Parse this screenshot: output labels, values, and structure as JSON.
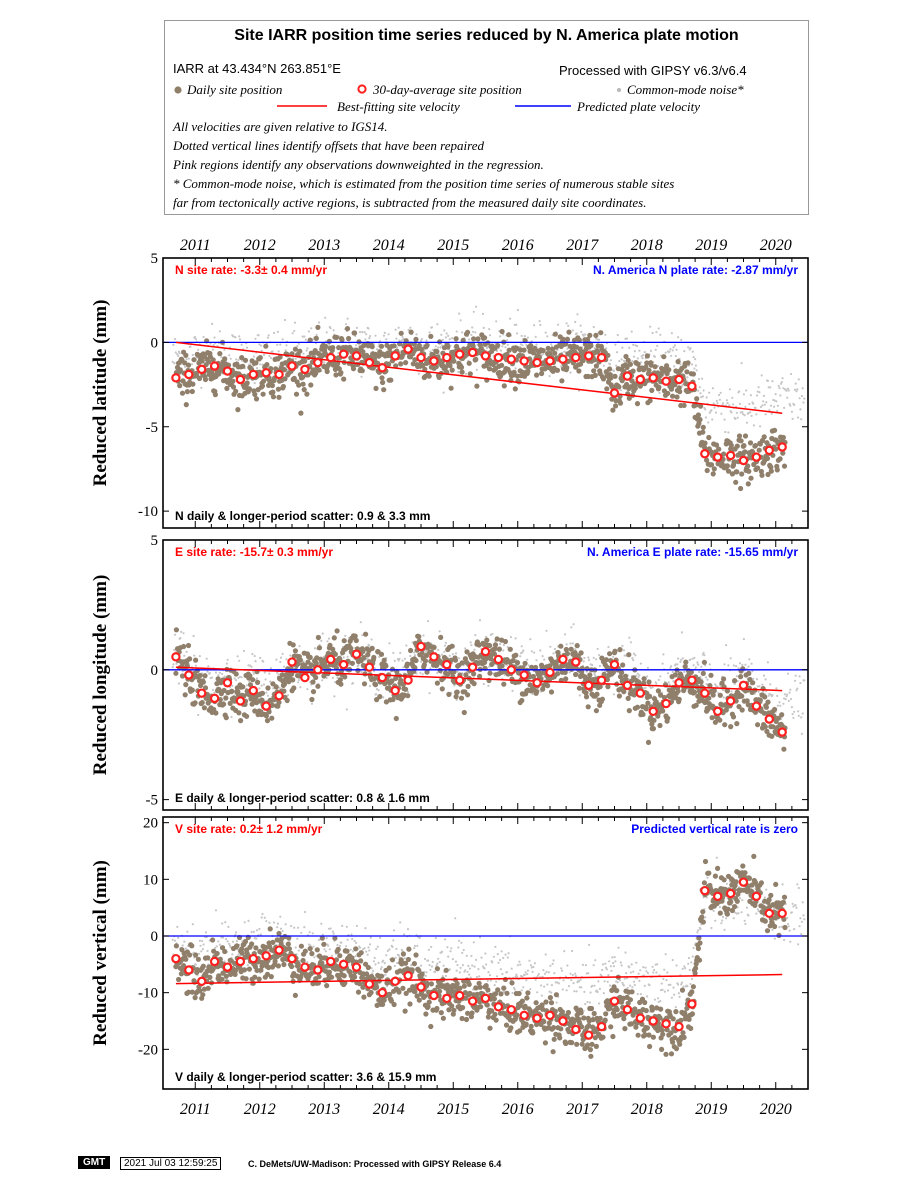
{
  "legend": {
    "title": "Site IARR position time series reduced by N. America plate motion",
    "site_line": "IARR at 43.434°N 263.851°E",
    "processed": "Processed with GIPSY v6.3/v6.4",
    "daily_label": "Daily site position",
    "avg_label": "30-day-average site position",
    "cm_label": "Common-mode noise*",
    "best_label": "Best-fitting site velocity",
    "pred_label": "Predicted plate velocity",
    "notes": [
      "All velocities are given relative to IGS14.",
      "Dotted vertical lines identify offsets that have been repaired",
      "Pink regions identify any observations downweighted in the regression.",
      "* Common-mode noise, which is estimated from the position time series of numerous stable sites",
      "far from tectonically active regions, is subtracted from the measured daily site coordinates."
    ]
  },
  "colors": {
    "daily": "#8f7f6b",
    "common_mode": "#c6c6c6",
    "avg_fill": "#ff2020",
    "best_fit": "#ff0000",
    "predicted": "#0000ff",
    "site_rate_text": "#ff0000",
    "plate_rate_text": "#0000ff"
  },
  "footer": {
    "logo": "GMT",
    "timestamp": "2021 Jul 03 12:59:25",
    "credit": "C. DeMets/UW-Madison: Processed with GIPSY Release 6.4"
  },
  "chart_data": [
    {
      "type": "scatter",
      "ylabel": "Reduced latitude (mm)",
      "xlim": [
        2010.5,
        2020.5
      ],
      "ylim": [
        -11,
        5
      ],
      "yticks": [
        5,
        0,
        -5,
        -10
      ],
      "x_tick_labels": [
        "2011",
        "2012",
        "2013",
        "2014",
        "2015",
        "2016",
        "2017",
        "2018",
        "2019",
        "2020"
      ],
      "site_rate_text": "N site rate:  -3.3± 0.4 mm/yr",
      "plate_rate_text": "N. America N plate rate: -2.87 mm/yr",
      "scatter_text": "N daily & longer-period scatter:   0.9 &   3.3 mm",
      "best_fit_line": {
        "x": [
          2010.7,
          2020.1
        ],
        "y": [
          0.0,
          -4.2
        ]
      },
      "predicted_line": {
        "x": [
          2010.7,
          2020.1
        ],
        "y": [
          0,
          0
        ]
      },
      "avg_x": [
        2010.7,
        2010.9,
        2011.1,
        2011.3,
        2011.5,
        2011.7,
        2011.9,
        2012.1,
        2012.3,
        2012.5,
        2012.7,
        2012.9,
        2013.1,
        2013.3,
        2013.5,
        2013.7,
        2013.9,
        2014.1,
        2014.3,
        2014.5,
        2014.7,
        2014.9,
        2015.1,
        2015.3,
        2015.5,
        2015.7,
        2015.9,
        2016.1,
        2016.3,
        2016.5,
        2016.7,
        2016.9,
        2017.1,
        2017.3,
        2017.5,
        2017.7,
        2017.9,
        2018.1,
        2018.3,
        2018.5,
        2018.7,
        2018.9,
        2019.1,
        2019.3,
        2019.5,
        2019.7,
        2019.9,
        2020.1
      ],
      "avg_y": [
        -2.1,
        -1.9,
        -1.6,
        -1.4,
        -1.7,
        -2.2,
        -1.9,
        -1.8,
        -1.9,
        -1.4,
        -1.6,
        -1.2,
        -0.9,
        -0.7,
        -0.8,
        -1.2,
        -1.5,
        -0.8,
        -0.4,
        -0.9,
        -1.1,
        -0.9,
        -0.7,
        -0.6,
        -0.8,
        -0.9,
        -1.0,
        -1.1,
        -1.2,
        -1.1,
        -1.0,
        -0.9,
        -0.8,
        -0.9,
        -3.0,
        -2.0,
        -2.2,
        -2.1,
        -2.3,
        -2.2,
        -2.6,
        -6.6,
        -6.8,
        -6.7,
        -7.0,
        -6.8,
        -6.4,
        -6.2
      ]
    },
    {
      "type": "scatter",
      "ylabel": "Reduced longitude (mm)",
      "xlim": [
        2010.5,
        2020.5
      ],
      "ylim": [
        -5.4,
        5
      ],
      "yticks": [
        5,
        0,
        -5
      ],
      "x_tick_labels": [
        "2011",
        "2012",
        "2013",
        "2014",
        "2015",
        "2016",
        "2017",
        "2018",
        "2019",
        "2020"
      ],
      "site_rate_text": "E site rate:  -15.7± 0.3 mm/yr",
      "plate_rate_text": "N. America E plate rate: -15.65 mm/yr",
      "scatter_text": "E daily & longer-period scatter:   0.8 &   1.6 mm",
      "best_fit_line": {
        "x": [
          2010.7,
          2020.1
        ],
        "y": [
          0.1,
          -0.8
        ]
      },
      "predicted_line": {
        "x": [
          2010.7,
          2020.1
        ],
        "y": [
          0,
          0
        ]
      },
      "avg_x": [
        2010.7,
        2010.9,
        2011.1,
        2011.3,
        2011.5,
        2011.7,
        2011.9,
        2012.1,
        2012.3,
        2012.5,
        2012.7,
        2012.9,
        2013.1,
        2013.3,
        2013.5,
        2013.7,
        2013.9,
        2014.1,
        2014.3,
        2014.5,
        2014.7,
        2014.9,
        2015.1,
        2015.3,
        2015.5,
        2015.7,
        2015.9,
        2016.1,
        2016.3,
        2016.5,
        2016.7,
        2016.9,
        2017.1,
        2017.3,
        2017.5,
        2017.7,
        2017.9,
        2018.1,
        2018.3,
        2018.5,
        2018.7,
        2018.9,
        2019.1,
        2019.3,
        2019.5,
        2019.7,
        2019.9,
        2020.1
      ],
      "avg_y": [
        0.5,
        -0.2,
        -0.9,
        -1.1,
        -0.5,
        -1.2,
        -0.8,
        -1.4,
        -1.0,
        0.3,
        -0.3,
        0.0,
        0.4,
        0.2,
        0.6,
        0.1,
        -0.3,
        -0.8,
        -0.4,
        0.9,
        0.5,
        0.2,
        -0.4,
        0.1,
        0.7,
        0.4,
        0.0,
        -0.2,
        -0.5,
        -0.1,
        0.4,
        0.3,
        -0.6,
        -0.4,
        0.2,
        -0.6,
        -0.9,
        -1.6,
        -1.3,
        -0.5,
        -0.4,
        -0.9,
        -1.6,
        -1.2,
        -0.6,
        -1.4,
        -1.9,
        -2.4
      ]
    },
    {
      "type": "scatter",
      "ylabel": "Reduced vertical (mm)",
      "xlim": [
        2010.5,
        2020.5
      ],
      "ylim": [
        -27,
        21
      ],
      "yticks": [
        20,
        10,
        0,
        -10,
        -20
      ],
      "x_tick_labels": [
        "2011",
        "2012",
        "2013",
        "2014",
        "2015",
        "2016",
        "2017",
        "2018",
        "2019",
        "2020"
      ],
      "site_rate_text": "V site rate:  0.2± 1.2 mm/yr",
      "plate_rate_text": "Predicted vertical rate is zero",
      "scatter_text": "V daily & longer-period scatter:   3.6 &  15.9 mm",
      "best_fit_line": {
        "x": [
          2010.7,
          2020.1
        ],
        "y": [
          -8.4,
          -6.8
        ]
      },
      "predicted_line": {
        "x": [
          2010.7,
          2020.1
        ],
        "y": [
          0,
          0
        ]
      },
      "avg_x": [
        2010.7,
        2010.9,
        2011.1,
        2011.3,
        2011.5,
        2011.7,
        2011.9,
        2012.1,
        2012.3,
        2012.5,
        2012.7,
        2012.9,
        2013.1,
        2013.3,
        2013.5,
        2013.7,
        2013.9,
        2014.1,
        2014.3,
        2014.5,
        2014.7,
        2014.9,
        2015.1,
        2015.3,
        2015.5,
        2015.7,
        2015.9,
        2016.1,
        2016.3,
        2016.5,
        2016.7,
        2016.9,
        2017.1,
        2017.3,
        2017.5,
        2017.7,
        2017.9,
        2018.1,
        2018.3,
        2018.5,
        2018.7,
        2018.9,
        2019.1,
        2019.3,
        2019.5,
        2019.7,
        2019.9,
        2020.1
      ],
      "avg_y": [
        -4.0,
        -6.0,
        -8.0,
        -4.5,
        -5.5,
        -4.5,
        -4.0,
        -3.5,
        -2.5,
        -4.0,
        -5.5,
        -6.0,
        -4.5,
        -5.0,
        -5.5,
        -8.5,
        -10.0,
        -8.0,
        -7.0,
        -9.0,
        -10.5,
        -11.0,
        -10.5,
        -11.5,
        -11.0,
        -12.5,
        -13.0,
        -14.0,
        -14.5,
        -14.0,
        -15.0,
        -16.5,
        -17.5,
        -16.0,
        -11.5,
        -13.0,
        -14.5,
        -15.0,
        -15.5,
        -16.0,
        -12.0,
        8.0,
        7.0,
        7.5,
        9.5,
        7.0,
        4.0,
        4.0
      ]
    }
  ]
}
